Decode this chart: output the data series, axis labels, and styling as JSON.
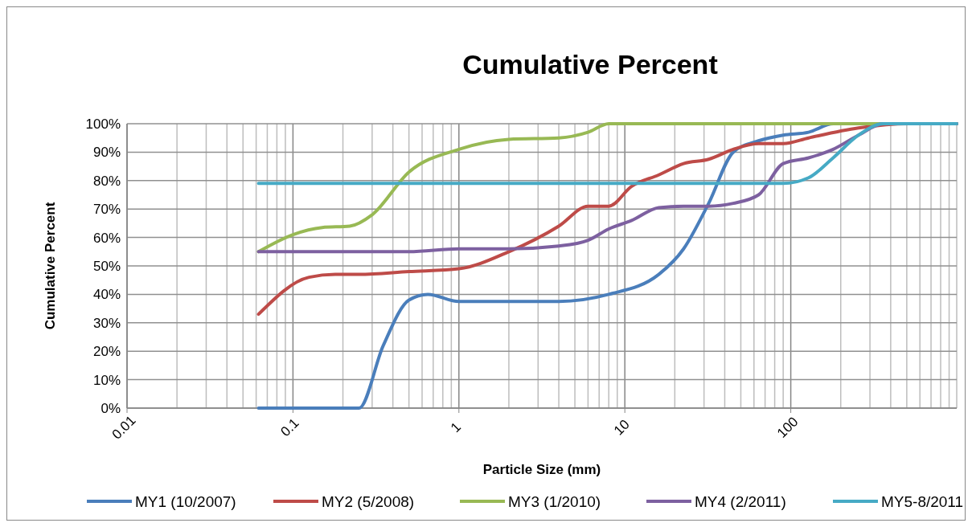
{
  "chart_data": {
    "type": "line",
    "title": "Cumulative Percent",
    "xlabel": "Particle Size (mm)",
    "ylabel": "Cumulative Percent",
    "log": "x",
    "grid": true,
    "legend": "bottom",
    "line_style": "solid",
    "marker": "none",
    "xlim": [
      0.01,
      1000
    ],
    "ylim": [
      0,
      100
    ],
    "xticks": [
      {
        "value": 0.01,
        "label": "0.01"
      },
      {
        "value": 0.02,
        "label": null
      },
      {
        "value": 0.03,
        "label": null
      },
      {
        "value": 0.04,
        "label": null
      },
      {
        "value": 0.05,
        "label": null
      },
      {
        "value": 0.06,
        "label": null
      },
      {
        "value": 0.07,
        "label": null
      },
      {
        "value": 0.08,
        "label": null
      },
      {
        "value": 0.09,
        "label": null
      },
      {
        "value": 0.1,
        "label": "0.1"
      },
      {
        "value": 0.2,
        "label": null
      },
      {
        "value": 0.3,
        "label": null
      },
      {
        "value": 0.4,
        "label": null
      },
      {
        "value": 0.5,
        "label": null
      },
      {
        "value": 0.6,
        "label": null
      },
      {
        "value": 0.7,
        "label": null
      },
      {
        "value": 0.8,
        "label": null
      },
      {
        "value": 0.9,
        "label": null
      },
      1,
      {
        "value": 2,
        "label": null
      },
      {
        "value": 3,
        "label": null
      },
      {
        "value": 4,
        "label": null
      },
      {
        "value": 5,
        "label": null
      },
      {
        "value": 6,
        "label": null
      },
      {
        "value": 7,
        "label": null
      },
      {
        "value": 8,
        "label": null
      },
      {
        "value": 9,
        "label": null
      },
      10,
      {
        "value": 20,
        "label": null
      },
      {
        "value": 30,
        "label": null
      },
      {
        "value": 40,
        "label": null
      },
      {
        "value": 50,
        "label": null
      },
      {
        "value": 60,
        "label": null
      },
      {
        "value": 70,
        "label": null
      },
      {
        "value": 80,
        "label": null
      },
      {
        "value": 90,
        "label": null
      },
      100,
      {
        "value": 200,
        "label": null
      },
      {
        "value": 300,
        "label": null
      },
      {
        "value": 400,
        "label": null
      },
      {
        "value": 500,
        "label": null
      },
      {
        "value": 600,
        "label": null
      },
      {
        "value": 700,
        "label": null
      },
      {
        "value": 800,
        "label": null
      },
      {
        "value": 900,
        "label": null
      },
      {
        "value": 1000,
        "label": null
      }
    ],
    "yticks": [
      {
        "value": 0,
        "label": "0%"
      },
      {
        "value": 10,
        "label": "10%"
      },
      {
        "value": 20,
        "label": "20%"
      },
      {
        "value": 30,
        "label": "30%"
      },
      {
        "value": 40,
        "label": "40%"
      },
      {
        "value": 50,
        "label": "50%"
      },
      {
        "value": 60,
        "label": "60%"
      },
      {
        "value": 70,
        "label": "70%"
      },
      {
        "value": 80,
        "label": "80%"
      },
      {
        "value": 90,
        "label": "90%"
      },
      {
        "value": 100,
        "label": "100%"
      }
    ],
    "series": [
      {
        "name": "MY1 (10/2007)",
        "color": "#4a7ebb",
        "x": [
          0.062,
          0.125,
          0.25,
          0.35,
          0.5,
          0.65,
          1,
          2,
          4,
          8,
          16,
          22.6,
          32,
          45,
          64,
          90,
          128,
          180,
          256,
          512,
          1000
        ],
        "values": [
          0,
          0,
          0,
          22,
          38,
          40,
          37.5,
          37.5,
          37.5,
          40,
          47,
          56,
          72,
          90,
          94,
          96,
          97,
          100,
          100,
          100,
          100
        ]
      },
      {
        "name": "MY2 (5/2008)",
        "color": "#be4b48",
        "x": [
          0.062,
          0.125,
          0.18,
          0.25,
          0.5,
          1,
          2,
          4,
          6,
          8,
          11,
          16,
          22.6,
          32,
          45,
          64,
          90,
          128,
          256,
          512,
          1000
        ],
        "values": [
          33,
          46,
          47,
          47,
          48,
          49,
          55,
          64,
          71,
          71,
          78,
          82,
          86,
          87.5,
          91,
          93,
          93,
          95,
          98.5,
          100,
          100
        ]
      },
      {
        "name": "MY3 (1/2010)",
        "color": "#98b954",
        "x": [
          0.062,
          0.1,
          0.15,
          0.22,
          0.3,
          0.5,
          1,
          2,
          4,
          6,
          8,
          16,
          64,
          256,
          1000
        ],
        "values": [
          55,
          61,
          63.5,
          64,
          68,
          83,
          91,
          94.5,
          95,
          97,
          100,
          100,
          100,
          100,
          100
        ]
      },
      {
        "name": "MY4 (2/2011)",
        "color": "#7d60a0",
        "x": [
          0.062,
          0.5,
          1,
          2,
          4,
          6,
          8,
          11,
          16,
          22.6,
          32,
          45,
          64,
          90,
          128,
          180,
          256,
          362,
          1000
        ],
        "values": [
          55,
          55,
          56,
          56,
          57,
          59,
          63,
          66,
          70.5,
          71,
          71,
          72,
          75,
          86,
          88,
          91,
          96,
          100,
          100
        ]
      },
      {
        "name": "MY5-8/2011",
        "color": "#46aac5",
        "x": [
          0.062,
          1,
          10,
          64,
          90,
          128,
          180,
          256,
          362,
          1000
        ],
        "values": [
          79,
          79,
          79,
          79,
          79,
          81,
          88,
          96,
          100,
          100
        ]
      }
    ]
  }
}
